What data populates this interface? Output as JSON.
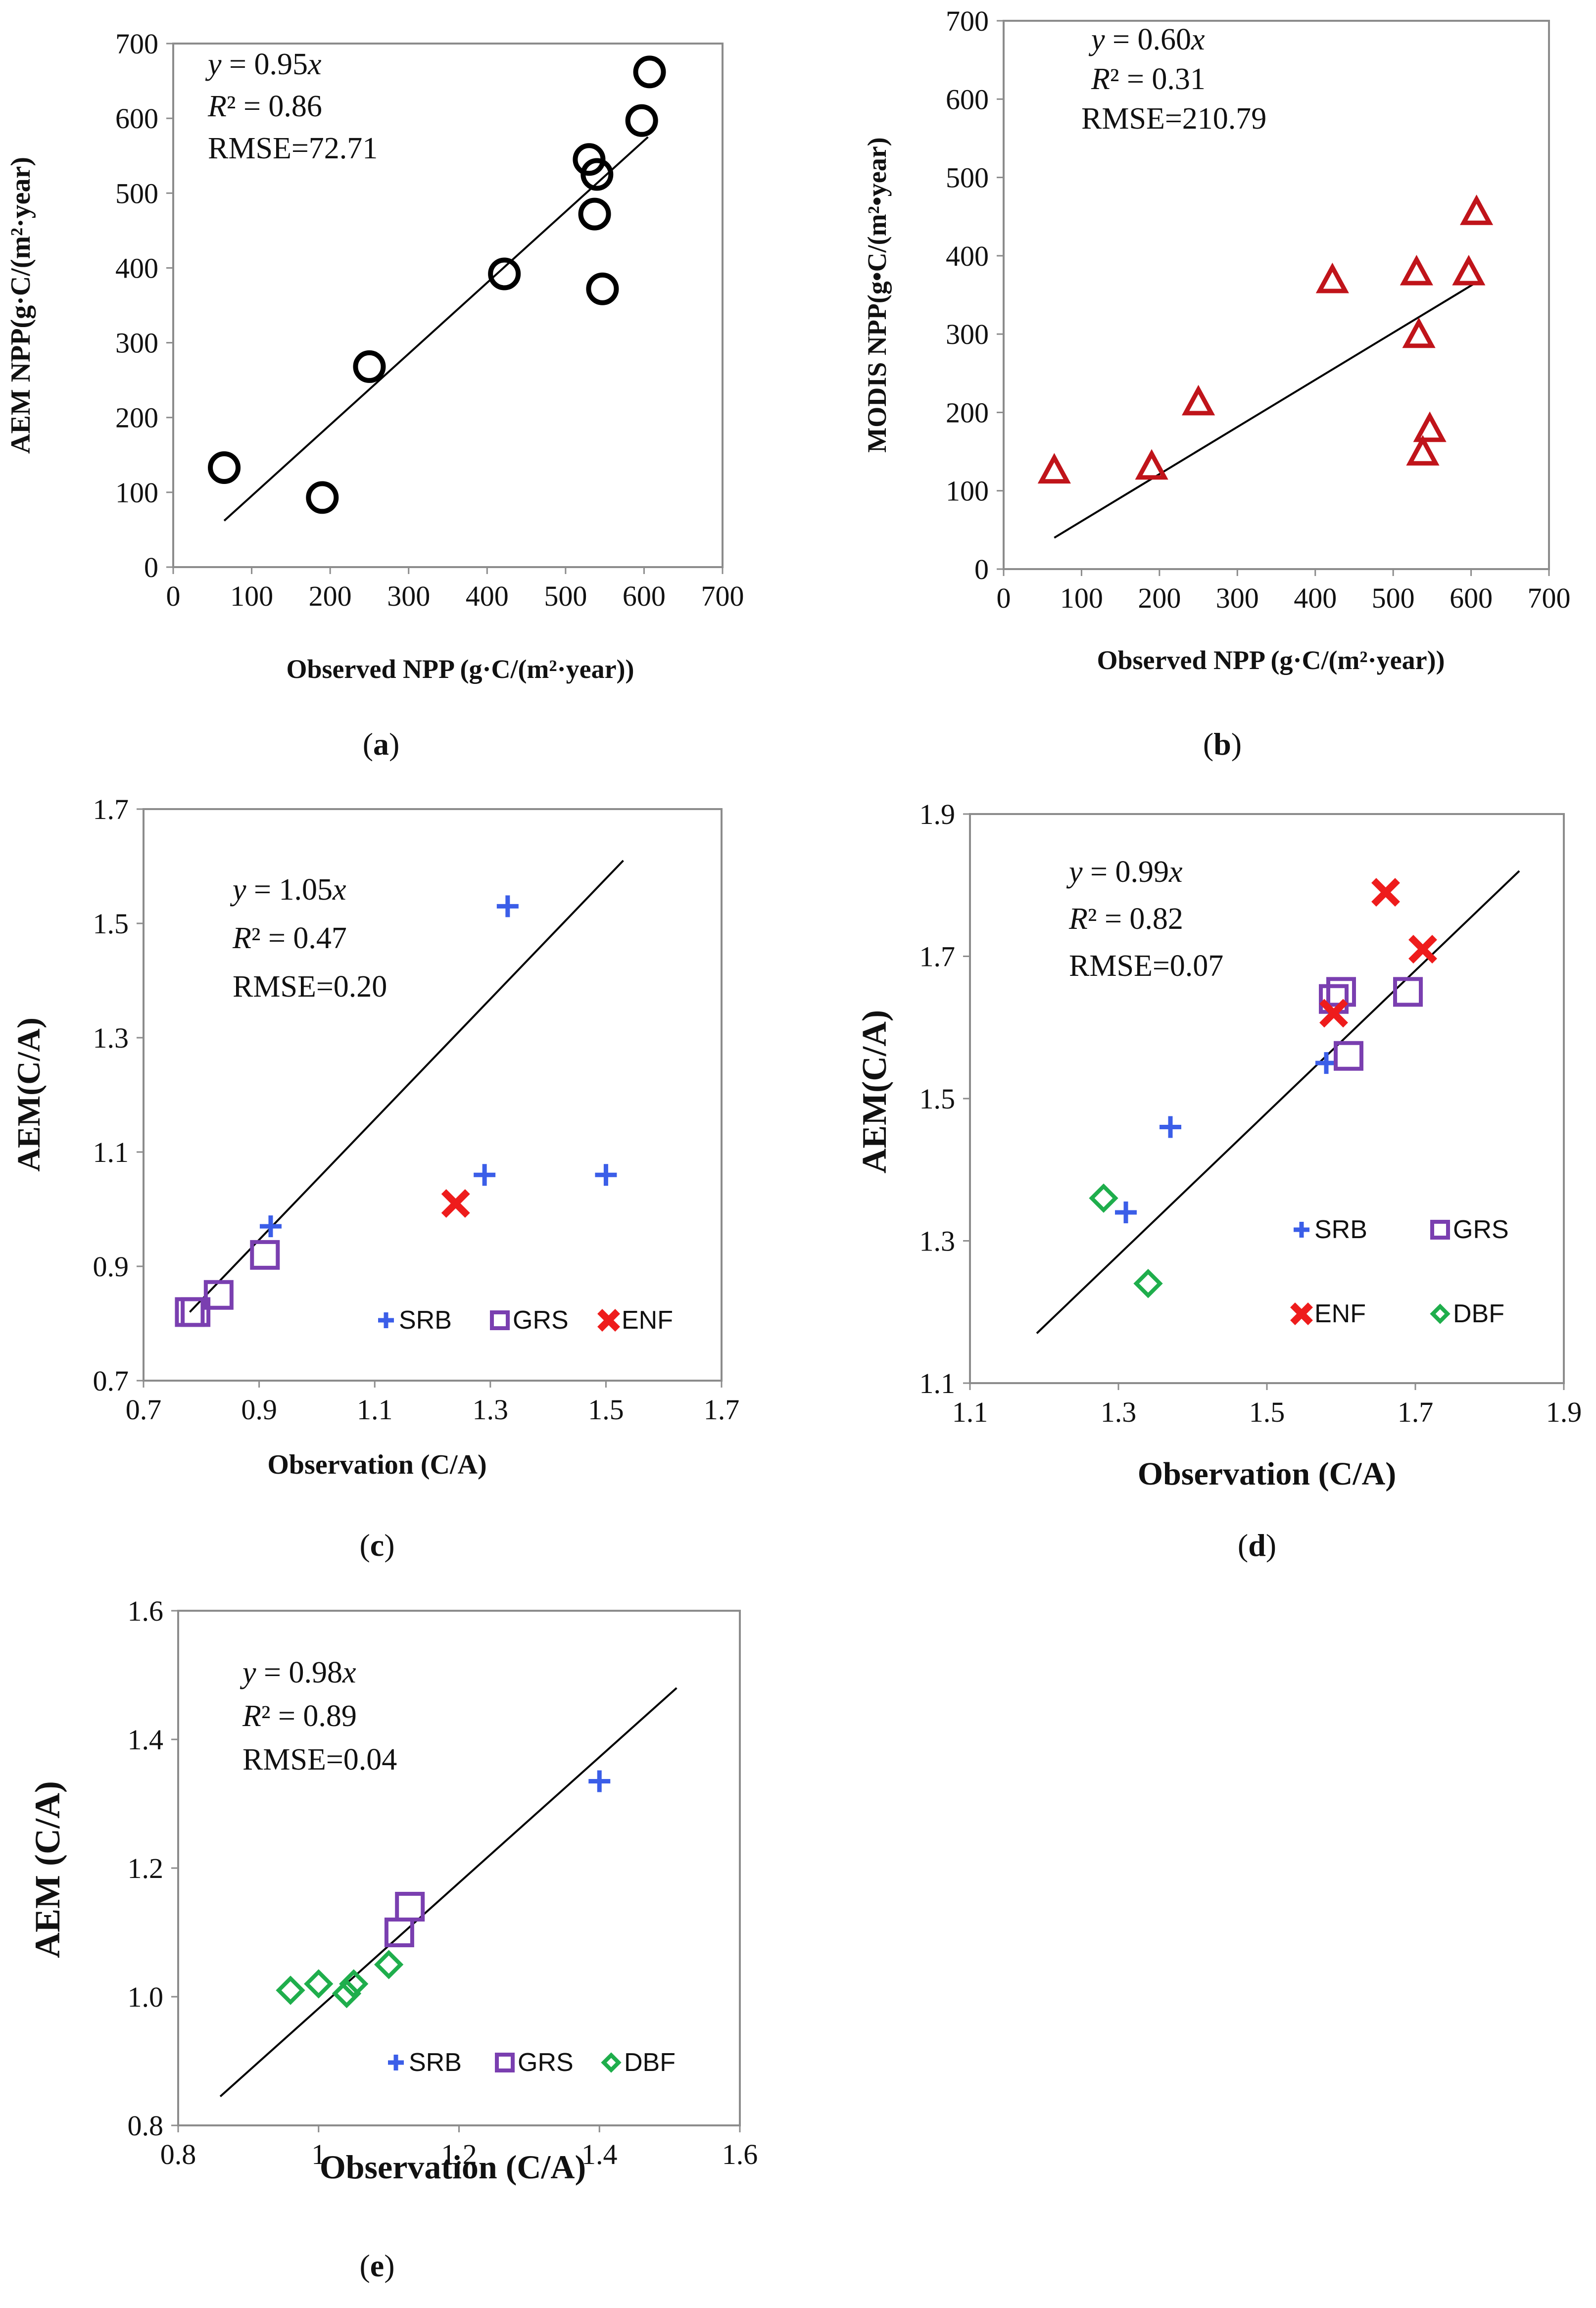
{
  "colors": {
    "black": "#000000",
    "srb": "#3b5ee8",
    "grs": "#7a3fb0",
    "enf": "#ee1c1c",
    "dbf": "#1fae4c",
    "modis": "#c0141a"
  },
  "chart_data": [
    {
      "id": "a",
      "type": "scatter",
      "panel_label": "(a)",
      "xlabel": "Observed NPP (g·C/(m²·year))",
      "ylabel": "AEM NPP(g·C/(m²·year)",
      "xlim": [
        0,
        700
      ],
      "ylim": [
        0,
        700
      ],
      "xticks": [
        "0",
        "100",
        "200",
        "300",
        "400",
        "500",
        "600",
        "700"
      ],
      "yticks": [
        "0",
        "100",
        "200",
        "300",
        "400",
        "500",
        "600",
        "700"
      ],
      "equation": "y = 0.95x",
      "r2": "R² = 0.86",
      "rmse": "RMSE=72.71",
      "fit_line": {
        "x": [
          65,
          605
        ],
        "y": [
          62,
          575
        ]
      },
      "series": [
        {
          "name": "AEM",
          "marker": "circle",
          "color": "#000000",
          "points": [
            [
              65,
              133
            ],
            [
              190,
              93
            ],
            [
              250,
              268
            ],
            [
              422,
              392
            ],
            [
              530,
              545
            ],
            [
              537,
              472
            ],
            [
              540,
              525
            ],
            [
              547,
              372
            ],
            [
              597,
              597
            ],
            [
              607,
              662
            ]
          ]
        }
      ]
    },
    {
      "id": "b",
      "type": "scatter",
      "panel_label": "(b)",
      "xlabel": "Observed NPP (g·C/(m²·year))",
      "ylabel": "MODIS NPP(g•C/(m²•year)",
      "xlim": [
        0,
        700
      ],
      "ylim": [
        0,
        700
      ],
      "xticks": [
        "0",
        "100",
        "200",
        "300",
        "400",
        "500",
        "600",
        "700"
      ],
      "yticks": [
        "0",
        "100",
        "200",
        "300",
        "400",
        "500",
        "600",
        "700"
      ],
      "equation": "y = 0.60x",
      "r2": "R² = 0.31",
      "rmse": "RMSE=210.79",
      "fit_line": {
        "x": [
          65,
          605
        ],
        "y": [
          40,
          365
        ]
      },
      "series": [
        {
          "name": "MODIS",
          "marker": "triangle",
          "color": "#c0141a",
          "points": [
            [
              65,
              125
            ],
            [
              190,
              130
            ],
            [
              250,
              212
            ],
            [
              422,
              368
            ],
            [
              530,
              378
            ],
            [
              533,
              298
            ],
            [
              538,
              148
            ],
            [
              547,
              178
            ],
            [
              597,
              378
            ],
            [
              607,
              455
            ]
          ]
        }
      ]
    },
    {
      "id": "c",
      "type": "scatter",
      "panel_label": "(c)",
      "xlabel": "Observation (C/A)",
      "ylabel": "AEM(C/A)",
      "xlim": [
        0.7,
        1.7
      ],
      "ylim": [
        0.7,
        1.7
      ],
      "xticks": [
        "0.7",
        "0.9",
        "1.1",
        "1.3",
        "1.5",
        "1.7"
      ],
      "yticks": [
        "0.7",
        "0.9",
        "1.1",
        "1.3",
        "1.5",
        "1.7"
      ],
      "equation": "y = 1.05x",
      "r2": "R² = 0.47",
      "rmse": "RMSE=0.20",
      "fit_line": {
        "x": [
          0.78,
          1.53
        ],
        "y": [
          0.82,
          1.61
        ]
      },
      "legend": [
        "SRB",
        "GRS",
        "ENF"
      ],
      "series": [
        {
          "name": "SRB",
          "marker": "plus",
          "color": "#3b5ee8",
          "points": [
            [
              0.92,
              0.97
            ],
            [
              1.29,
              1.06
            ],
            [
              1.33,
              1.53
            ],
            [
              1.5,
              1.06
            ]
          ]
        },
        {
          "name": "GRS",
          "marker": "square",
          "color": "#7a3fb0",
          "points": [
            [
              0.78,
              0.82
            ],
            [
              0.79,
              0.82
            ],
            [
              0.83,
              0.85
            ],
            [
              0.91,
              0.92
            ]
          ]
        },
        {
          "name": "ENF",
          "marker": "cross",
          "color": "#ee1c1c",
          "points": [
            [
              1.24,
              1.01
            ]
          ]
        }
      ]
    },
    {
      "id": "d",
      "type": "scatter",
      "panel_label": "(d)",
      "xlabel": "Observation (C/A)",
      "ylabel": "AEM(C/A)",
      "xlim": [
        1.1,
        1.9
      ],
      "ylim": [
        1.1,
        1.9
      ],
      "xticks": [
        "1.1",
        "1.3",
        "1.5",
        "1.7",
        "1.9"
      ],
      "yticks": [
        "1.1",
        "1.3",
        "1.5",
        "1.7",
        "1.9"
      ],
      "equation": "y = 0.99x",
      "r2": "R² = 0.82",
      "rmse": "RMSE=0.07",
      "fit_line": {
        "x": [
          1.19,
          1.84
        ],
        "y": [
          1.17,
          1.82
        ]
      },
      "legend": [
        "SRB",
        "GRS",
        "ENF",
        "DBF"
      ],
      "series": [
        {
          "name": "SRB",
          "marker": "plus",
          "color": "#3b5ee8",
          "points": [
            [
              1.31,
              1.34
            ],
            [
              1.37,
              1.46
            ],
            [
              1.58,
              1.55
            ]
          ]
        },
        {
          "name": "GRS",
          "marker": "square",
          "color": "#7a3fb0",
          "points": [
            [
              1.59,
              1.64
            ],
            [
              1.6,
              1.65
            ],
            [
              1.61,
              1.56
            ],
            [
              1.69,
              1.65
            ]
          ]
        },
        {
          "name": "ENF",
          "marker": "cross",
          "color": "#ee1c1c",
          "points": [
            [
              1.59,
              1.62
            ],
            [
              1.66,
              1.79
            ],
            [
              1.71,
              1.71
            ]
          ]
        },
        {
          "name": "DBF",
          "marker": "diamond",
          "color": "#1fae4c",
          "points": [
            [
              1.28,
              1.36
            ],
            [
              1.34,
              1.24
            ]
          ]
        }
      ]
    },
    {
      "id": "e",
      "type": "scatter",
      "panel_label": "(e)",
      "xlabel": "Observation (C/A)",
      "ylabel": "AEM (C/A)",
      "xlim": [
        0.8,
        1.6
      ],
      "ylim": [
        0.8,
        1.6
      ],
      "xticks": [
        "0.8",
        "1",
        "1.2",
        "1.4",
        "1.6"
      ],
      "yticks": [
        "0.8",
        "1.0",
        "1.2",
        "1.4",
        "1.6"
      ],
      "equation": "y = 0.98x",
      "r2": "R² = 0.89",
      "rmse": "RMSE=0.04",
      "fit_line": {
        "x": [
          0.86,
          1.51
        ],
        "y": [
          0.845,
          1.48
        ]
      },
      "legend": [
        "SRB",
        "GRS",
        "DBF"
      ],
      "series": [
        {
          "name": "SRB",
          "marker": "plus",
          "color": "#3b5ee8",
          "points": [
            [
              1.4,
              1.335
            ]
          ]
        },
        {
          "name": "GRS",
          "marker": "square",
          "color": "#7a3fb0",
          "points": [
            [
              1.115,
              1.1
            ],
            [
              1.13,
              1.14
            ]
          ]
        },
        {
          "name": "DBF",
          "marker": "diamond",
          "color": "#1fae4c",
          "points": [
            [
              0.96,
              1.01
            ],
            [
              1.0,
              1.02
            ],
            [
              1.04,
              1.005
            ],
            [
              1.05,
              1.02
            ],
            [
              1.1,
              1.05
            ]
          ]
        }
      ]
    }
  ]
}
